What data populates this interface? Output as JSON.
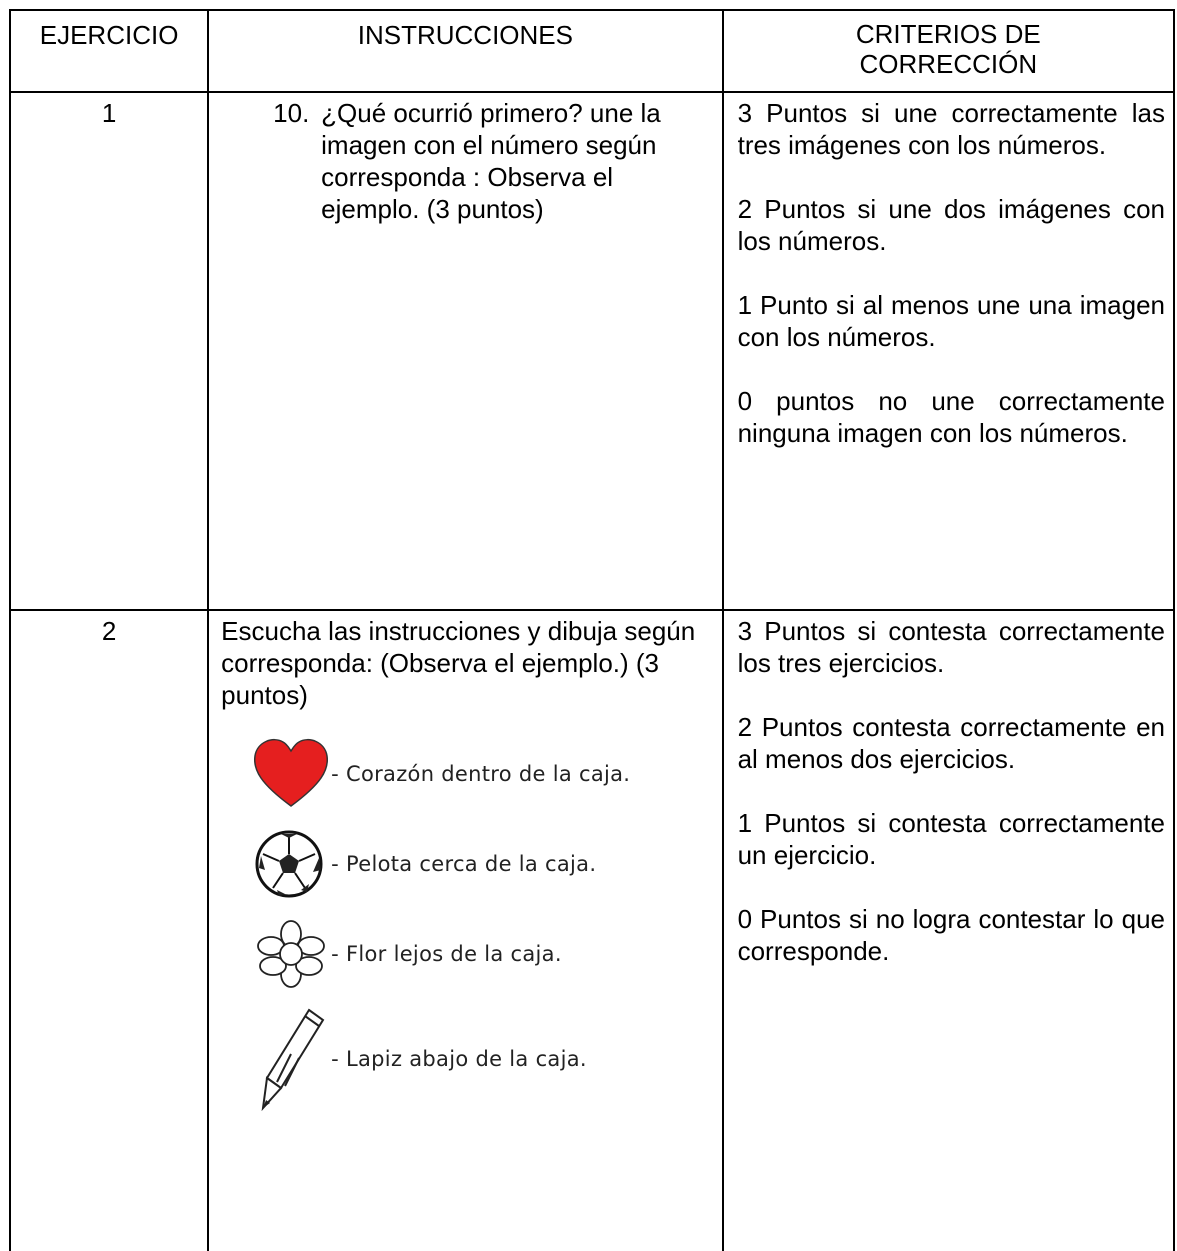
{
  "table": {
    "header": [
      "EJERCICIO",
      "INSTRUCCIONES",
      [
        "CRITERIOS DE",
        "CORRECCIÓN"
      ]
    ],
    "rows": [
      {
        "number": "1",
        "instruction": {
          "list_number": "10.",
          "text": "¿Qué ocurrió primero? une la imagen con el número según corresponda : Observa el ejemplo.  (3 puntos)"
        },
        "criteria": [
          "3 Puntos si une correctamente las tres imágenes con los números.",
          "2 Puntos si une dos imágenes con los números.",
          "1 Punto si al menos une una imagen con los números.",
          "0 puntos no une correctamente ninguna imagen con los números."
        ]
      },
      {
        "number": "2",
        "instruction": {
          "text": "Escucha las instrucciones y dibuja según corresponda: (Observa el ejemplo.) (3 puntos)",
          "items": [
            "- Corazón dentro de la caja.",
            "- Pelota cerca de la caja.",
            "- Flor lejos de la caja.",
            "- Lapiz abajo de la caja."
          ]
        },
        "criteria": [
          "3 Puntos si contesta correctamente los tres ejercicios.",
          "2 Puntos contesta correctamente en al menos dos ejercicios.",
          "1 Puntos si contesta correctamente un ejercicio.",
          "0 Puntos si no logra contestar lo que corresponde."
        ]
      }
    ]
  }
}
